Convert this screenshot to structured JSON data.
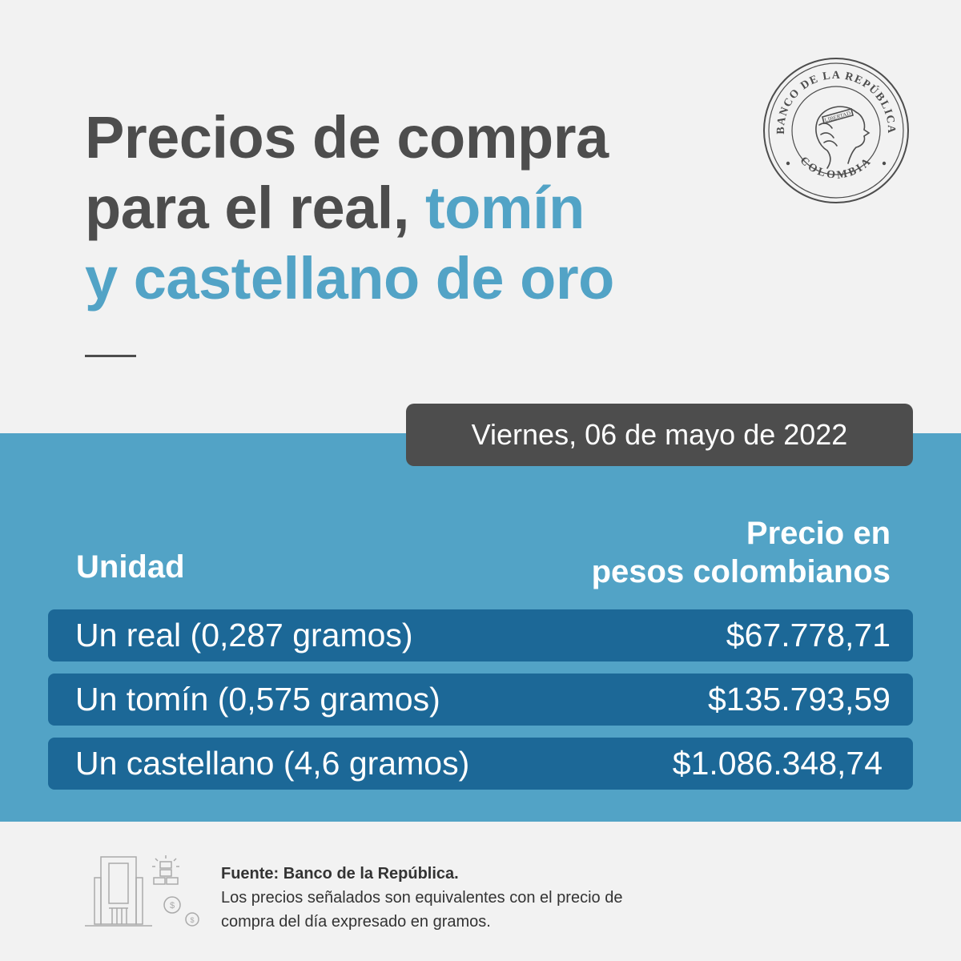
{
  "title": {
    "line1": "Precios de compra",
    "line2_dark": "para el real, ",
    "line2_accent": "tomín",
    "line3_accent": "y castellano de oro"
  },
  "seal": {
    "top_text": "BANCO DE LA REPÚBLICA",
    "bottom_text": "COLOMBIA",
    "ribbon_text": "LIBERTAD"
  },
  "date": "Viernes, 06 de mayo de 2022",
  "table": {
    "header_unit": "Unidad",
    "header_price_line1": "Precio en",
    "header_price_line2": "pesos colombianos",
    "rows": [
      {
        "unit": "Un real (0,287 gramos)",
        "price": "$67.778,71"
      },
      {
        "unit": "Un tomín (0,575 gramos)",
        "price": "$135.793,59"
      },
      {
        "unit": "Un castellano (4,6 gramos)",
        "price": "$1.086.348,74"
      }
    ]
  },
  "footer": {
    "source": "Fuente: Banco de la República.",
    "note_line1": "Los precios señalados son equivalentes con el precio de",
    "note_line2": "compra del día expresado en gramos.",
    "icon": "bank-building-gold-coins-icon"
  },
  "colors": {
    "background": "#f2f2f2",
    "dark_text": "#4d4d4d",
    "accent": "#52a3c6",
    "band": "#52a3c6",
    "row": "#1c6897",
    "pill": "#4d4d4d"
  }
}
